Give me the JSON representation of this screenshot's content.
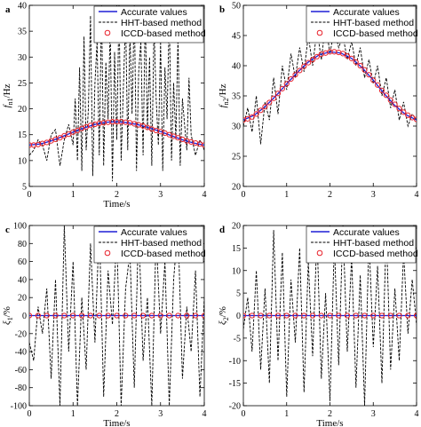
{
  "colors": {
    "accurate": "#1f1fd6",
    "hht": "#000000",
    "iccd": "#e8202a"
  },
  "legend": [
    "Accurate values",
    "HHT-based method",
    "ICCD-based method"
  ],
  "chart_data": [
    {
      "panel": "a",
      "type": "line",
      "xlabel": "Time/s",
      "ylabel": "f_n1/Hz",
      "ylabel_main": "f",
      "ylabel_sub": "n1",
      "ylabel_unit": "/Hz",
      "xlim": [
        0,
        4
      ],
      "ylim": [
        5,
        40
      ],
      "xticks": [
        0,
        1,
        2,
        3,
        4
      ],
      "yticks": [
        5,
        10,
        15,
        20,
        25,
        30,
        35,
        40
      ],
      "accurate": {
        "x": [
          0,
          0.25,
          0.5,
          0.75,
          1,
          1.25,
          1.5,
          1.75,
          2,
          2.25,
          2.5,
          2.75,
          3,
          3.25,
          3.5,
          3.75,
          4
        ],
        "y": [
          13,
          13.2,
          13.8,
          14.6,
          15.5,
          16.3,
          17,
          17.4,
          17.5,
          17.3,
          16.9,
          16.3,
          15.6,
          14.8,
          14,
          13.4,
          13
        ]
      },
      "iccd": {
        "x": [
          0,
          0.1,
          0.2,
          0.3,
          0.4,
          0.5,
          0.6,
          0.7,
          0.8,
          0.9,
          1,
          1.1,
          1.2,
          1.3,
          1.4,
          1.5,
          1.6,
          1.7,
          1.8,
          1.9,
          2,
          2.1,
          2.2,
          2.3,
          2.4,
          2.5,
          2.6,
          2.7,
          2.8,
          2.9,
          3,
          3.1,
          3.2,
          3.3,
          3.4,
          3.5,
          3.6,
          3.7,
          3.8,
          3.9,
          4
        ],
        "y": [
          13,
          13,
          13.1,
          13.3,
          13.5,
          13.8,
          14.1,
          14.4,
          14.8,
          15.1,
          15.5,
          15.8,
          16.2,
          16.5,
          16.8,
          17,
          17.2,
          17.3,
          17.4,
          17.5,
          17.5,
          17.5,
          17.4,
          17.3,
          17.1,
          16.9,
          16.7,
          16.4,
          16.1,
          15.8,
          15.6,
          15.3,
          15,
          14.7,
          14.4,
          14.1,
          13.8,
          13.6,
          13.4,
          13.2,
          13
        ]
      },
      "hht": {
        "x": [
          0,
          0.1,
          0.2,
          0.3,
          0.4,
          0.5,
          0.6,
          0.7,
          0.8,
          0.9,
          1,
          1.05,
          1.1,
          1.15,
          1.2,
          1.25,
          1.3,
          1.35,
          1.4,
          1.45,
          1.5,
          1.55,
          1.6,
          1.65,
          1.7,
          1.75,
          1.8,
          1.85,
          1.9,
          1.95,
          2,
          2.05,
          2.1,
          2.15,
          2.2,
          2.25,
          2.3,
          2.35,
          2.4,
          2.45,
          2.5,
          2.55,
          2.6,
          2.65,
          2.7,
          2.75,
          2.8,
          2.85,
          2.9,
          2.95,
          3,
          3.05,
          3.1,
          3.15,
          3.2,
          3.25,
          3.3,
          3.35,
          3.4,
          3.45,
          3.5,
          3.55,
          3.6,
          3.65,
          3.7,
          3.8,
          3.9,
          4
        ],
        "y": [
          11,
          12,
          14,
          13,
          10,
          15,
          16,
          9,
          14,
          17,
          13,
          22,
          10,
          28,
          8,
          34,
          12,
          20,
          38,
          7,
          25,
          33,
          11,
          40,
          9,
          29,
          18,
          36,
          6,
          31,
          14,
          40,
          10,
          24,
          38,
          12,
          35,
          19,
          40,
          8,
          27,
          33,
          11,
          38,
          16,
          30,
          9,
          36,
          22,
          13,
          33,
          8,
          28,
          18,
          38,
          10,
          25,
          14,
          34,
          9,
          22,
          17,
          12,
          26,
          15,
          11,
          14,
          12
        ]
      }
    },
    {
      "panel": "b",
      "type": "line",
      "xlabel": "",
      "ylabel": "f_n2/Hz",
      "ylabel_main": "f",
      "ylabel_sub": "n2",
      "ylabel_unit": "/Hz",
      "xlim": [
        0,
        4
      ],
      "ylim": [
        20,
        50
      ],
      "xticks": [
        0,
        1,
        2,
        3,
        4
      ],
      "yticks": [
        20,
        25,
        30,
        35,
        40,
        45,
        50
      ],
      "accurate": {
        "x": [
          0,
          0.25,
          0.5,
          0.75,
          1,
          1.25,
          1.5,
          1.75,
          2,
          2.25,
          2.5,
          2.75,
          3,
          3.25,
          3.5,
          3.75,
          4
        ],
        "y": [
          31,
          31.8,
          33.2,
          35,
          37,
          38.9,
          40.6,
          41.8,
          42.3,
          42.1,
          41.2,
          39.6,
          37.6,
          35.4,
          33.4,
          31.9,
          31
        ]
      },
      "iccd": {
        "x": [
          0,
          0.1,
          0.2,
          0.3,
          0.4,
          0.5,
          0.6,
          0.7,
          0.8,
          0.9,
          1,
          1.1,
          1.2,
          1.3,
          1.4,
          1.5,
          1.6,
          1.7,
          1.8,
          1.9,
          2,
          2.1,
          2.2,
          2.3,
          2.4,
          2.5,
          2.6,
          2.7,
          2.8,
          2.9,
          3,
          3.1,
          3.2,
          3.3,
          3.4,
          3.5,
          3.6,
          3.7,
          3.8,
          3.9,
          4
        ],
        "y": [
          31,
          31.2,
          31.5,
          32,
          32.6,
          33.2,
          33.9,
          34.6,
          35.4,
          36.2,
          37,
          37.8,
          38.5,
          39.2,
          39.9,
          40.5,
          41,
          41.5,
          41.9,
          42.1,
          42.3,
          42.3,
          42.2,
          42,
          41.6,
          41.2,
          40.6,
          40,
          39.3,
          38.5,
          37.6,
          36.8,
          35.9,
          35.1,
          34.3,
          33.6,
          32.9,
          32.3,
          31.8,
          31.4,
          31.1
        ]
      },
      "hht": {
        "x": [
          0,
          0.1,
          0.2,
          0.3,
          0.4,
          0.5,
          0.6,
          0.7,
          0.8,
          0.9,
          1,
          1.1,
          1.2,
          1.3,
          1.4,
          1.5,
          1.6,
          1.7,
          1.8,
          1.9,
          2,
          2.1,
          2.2,
          2.3,
          2.4,
          2.5,
          2.6,
          2.7,
          2.8,
          2.9,
          3,
          3.1,
          3.2,
          3.3,
          3.4,
          3.5,
          3.6,
          3.7,
          3.8,
          3.9,
          4
        ],
        "y": [
          30,
          33,
          29,
          35,
          27,
          34,
          31,
          38,
          32,
          40,
          36,
          42,
          38,
          43,
          39,
          45,
          40,
          46,
          41,
          47,
          42,
          46,
          43,
          45,
          41,
          44,
          40,
          43,
          38,
          41,
          37,
          40,
          35,
          38,
          33,
          36,
          31,
          34,
          30,
          32,
          31
        ]
      }
    },
    {
      "panel": "c",
      "type": "line",
      "xlabel": "Time/s",
      "ylabel": "ξ1/%",
      "ylabel_main": "ξ",
      "ylabel_sub": "1",
      "ylabel_unit": "/%",
      "xlim": [
        0,
        4
      ],
      "ylim": [
        -100,
        100
      ],
      "xticks": [
        0,
        1,
        2,
        3,
        4
      ],
      "yticks": [
        -100,
        -80,
        -60,
        -40,
        -20,
        0,
        20,
        40,
        60,
        80,
        100
      ],
      "accurate": {
        "x": [
          0,
          4
        ],
        "y": [
          0,
          0
        ]
      },
      "iccd": {
        "x": [
          0,
          0.2,
          0.4,
          0.6,
          0.8,
          1,
          1.2,
          1.4,
          1.6,
          1.8,
          2,
          2.2,
          2.4,
          2.6,
          2.8,
          3,
          3.2,
          3.4,
          3.6,
          3.8,
          4
        ],
        "y": [
          0,
          0,
          0,
          0,
          0,
          0,
          0,
          0,
          0,
          0,
          0,
          0,
          0,
          0,
          0,
          0,
          0,
          0,
          0,
          0,
          0
        ]
      },
      "hht": {
        "x": [
          0,
          0.1,
          0.2,
          0.3,
          0.4,
          0.5,
          0.6,
          0.7,
          0.8,
          0.9,
          1,
          1.1,
          1.2,
          1.3,
          1.4,
          1.5,
          1.6,
          1.7,
          1.8,
          1.9,
          2,
          2.1,
          2.2,
          2.3,
          2.4,
          2.5,
          2.6,
          2.7,
          2.8,
          2.9,
          3,
          3.1,
          3.2,
          3.3,
          3.4,
          3.5,
          3.6,
          3.7,
          3.8,
          3.9,
          4
        ],
        "y": [
          -30,
          -50,
          10,
          -20,
          30,
          -70,
          40,
          -100,
          100,
          -40,
          60,
          -100,
          20,
          -60,
          80,
          -30,
          100,
          -90,
          50,
          -10,
          90,
          -100,
          30,
          70,
          -80,
          100,
          -50,
          20,
          -100,
          90,
          -20,
          60,
          -100,
          40,
          100,
          -70,
          10,
          -40,
          50,
          -90,
          20
        ]
      }
    },
    {
      "panel": "d",
      "type": "line",
      "xlabel": "Time/s",
      "ylabel": "ξ2/%",
      "ylabel_main": "ξ",
      "ylabel_sub": "2",
      "ylabel_unit": "/%",
      "xlim": [
        0,
        4
      ],
      "ylim": [
        -20,
        20
      ],
      "xticks": [
        0,
        1,
        2,
        3,
        4
      ],
      "yticks": [
        -20,
        -15,
        -10,
        -5,
        0,
        5,
        10,
        15,
        20
      ],
      "accurate": {
        "x": [
          0,
          4
        ],
        "y": [
          0,
          0
        ]
      },
      "iccd": {
        "x": [
          0,
          0.2,
          0.4,
          0.6,
          0.8,
          1,
          1.2,
          1.4,
          1.6,
          1.8,
          2,
          2.2,
          2.4,
          2.6,
          2.8,
          3,
          3.2,
          3.4,
          3.6,
          3.8,
          4
        ],
        "y": [
          0,
          0,
          0,
          0,
          0,
          0,
          0,
          0,
          0,
          0,
          0,
          0,
          0,
          0,
          0,
          0,
          0,
          0,
          0,
          0,
          0
        ]
      },
      "hht": {
        "x": [
          0,
          0.1,
          0.2,
          0.3,
          0.4,
          0.5,
          0.6,
          0.7,
          0.8,
          0.9,
          1,
          1.1,
          1.2,
          1.3,
          1.4,
          1.5,
          1.6,
          1.7,
          1.8,
          1.9,
          2,
          2.1,
          2.2,
          2.3,
          2.4,
          2.5,
          2.6,
          2.7,
          2.8,
          2.9,
          3,
          3.1,
          3.2,
          3.3,
          3.4,
          3.5,
          3.6,
          3.7,
          3.8,
          3.9,
          4
        ],
        "y": [
          -3,
          4,
          -8,
          10,
          -12,
          6,
          -15,
          19,
          -10,
          14,
          -18,
          8,
          -6,
          15,
          -17,
          12,
          -9,
          18,
          -14,
          5,
          -19,
          16,
          -11,
          20,
          -8,
          13,
          -16,
          9,
          -20,
          17,
          -7,
          11,
          -15,
          19,
          -12,
          6,
          -10,
          14,
          -4,
          8,
          -2
        ]
      }
    }
  ]
}
